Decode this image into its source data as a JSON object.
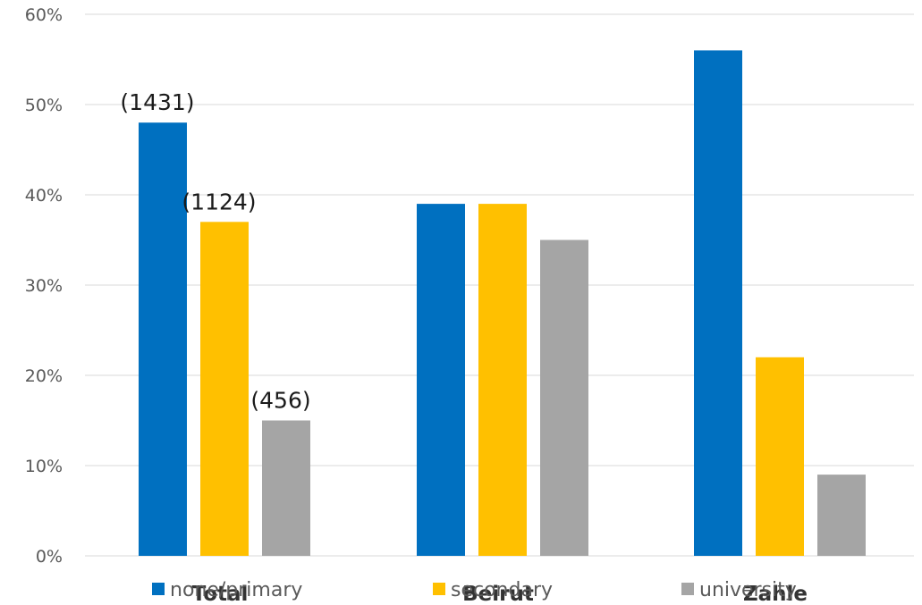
{
  "chart_data": {
    "type": "bar",
    "categories": [
      "Total",
      "Beirut",
      "Zahle"
    ],
    "series": [
      {
        "name": "none/primary",
        "values": [
          48,
          39,
          56
        ],
        "color": "#0070C0"
      },
      {
        "name": "secondary",
        "values": [
          37,
          39,
          22
        ],
        "color": "#FFC000"
      },
      {
        "name": "university",
        "values": [
          15,
          35,
          9
        ],
        "color": "#A5A5A5"
      }
    ],
    "data_labels": [
      {
        "series": 0,
        "category": 0,
        "text": "(1431)"
      },
      {
        "series": 1,
        "category": 0,
        "text": "(1124)"
      },
      {
        "series": 2,
        "category": 0,
        "text": "(456)"
      }
    ],
    "ylim": [
      0,
      60
    ],
    "yticks": [
      "0%",
      "10%",
      "20%",
      "30%",
      "40%",
      "50%",
      "60%"
    ],
    "ytick_values": [
      0,
      10,
      20,
      30,
      40,
      50,
      60
    ],
    "grid": true,
    "legend_position": "bottom",
    "title": "",
    "xlabel": "",
    "ylabel": ""
  }
}
